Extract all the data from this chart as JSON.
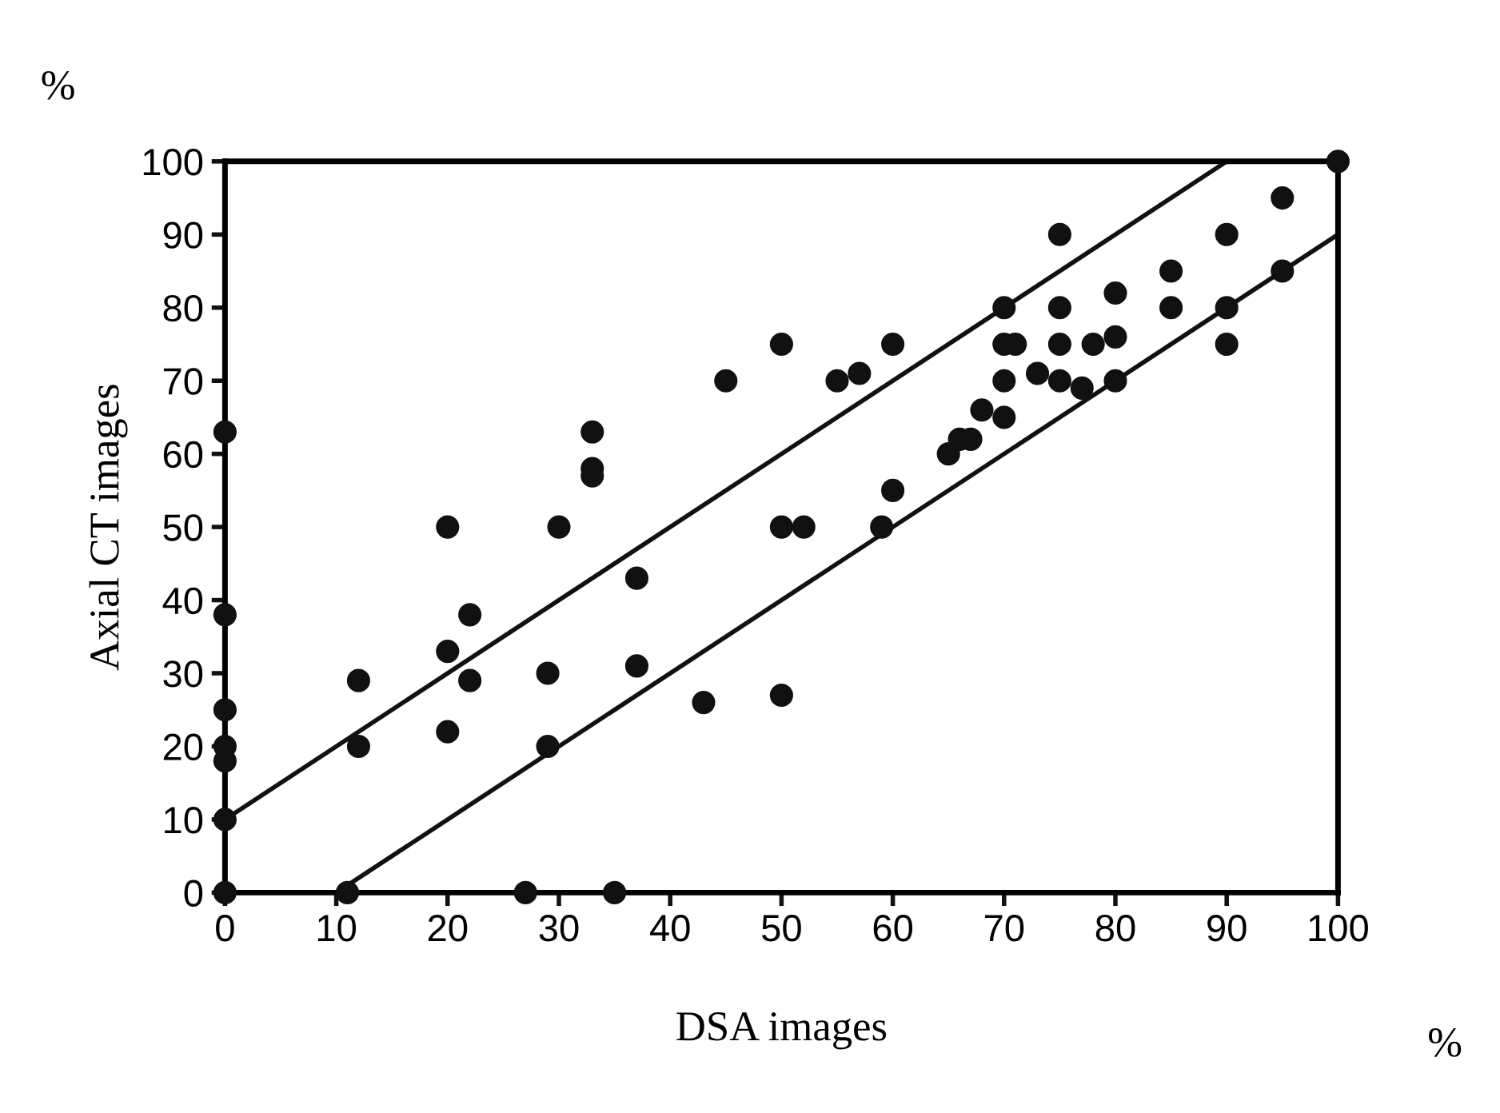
{
  "chart_data": {
    "type": "scatter",
    "xlabel": "DSA images",
    "ylabel": "Axial CT images",
    "annotations": [
      "%",
      "%"
    ],
    "xlim": [
      0,
      100
    ],
    "ylim": [
      0,
      100
    ],
    "xticks": [
      0,
      10,
      20,
      30,
      40,
      50,
      60,
      70,
      80,
      90,
      100
    ],
    "yticks": [
      0,
      10,
      20,
      30,
      40,
      50,
      60,
      70,
      80,
      90,
      100
    ],
    "grid": false,
    "legend": false,
    "marker": "circle",
    "series": [
      {
        "color": "#111111",
        "x": [
          0,
          0,
          0,
          0,
          0,
          0,
          0,
          11,
          12,
          12,
          20,
          20,
          20,
          22,
          22,
          27,
          29,
          29,
          30,
          33,
          33,
          33,
          35,
          37,
          37,
          43,
          45,
          50,
          50,
          50,
          52,
          55,
          57,
          59,
          60,
          60,
          65,
          66,
          67,
          68,
          70,
          70,
          70,
          70,
          71,
          73,
          75,
          75,
          75,
          75,
          77,
          78,
          80,
          80,
          80,
          85,
          85,
          90,
          90,
          90,
          95,
          95,
          100
        ],
        "values": [
          63,
          38,
          25,
          20,
          18,
          10,
          0,
          0,
          29,
          20,
          50,
          33,
          22,
          38,
          29,
          0,
          30,
          20,
          50,
          63,
          58,
          57,
          0,
          31,
          43,
          26,
          70,
          75,
          50,
          27,
          50,
          70,
          71,
          50,
          75,
          55,
          60,
          62,
          62,
          66,
          80,
          75,
          70,
          65,
          75,
          71,
          90,
          80,
          75,
          70,
          69,
          75,
          82,
          76,
          70,
          85,
          80,
          90,
          80,
          75,
          95,
          85,
          100
        ]
      },
      {
        "type": "line",
        "color": "#111111",
        "marker": "none",
        "x": [
          0,
          90
        ],
        "values": [
          10,
          100
        ]
      },
      {
        "type": "line",
        "color": "#111111",
        "marker": "none",
        "x": [
          10,
          100
        ],
        "values": [
          0,
          90
        ]
      }
    ]
  }
}
